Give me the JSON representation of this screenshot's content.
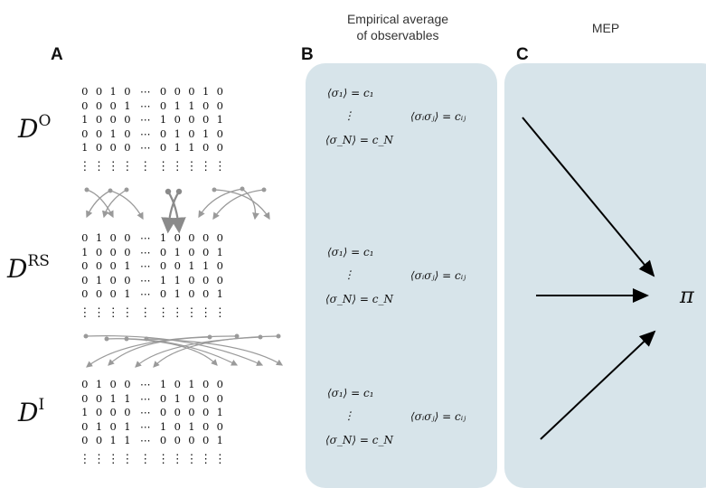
{
  "panels": {
    "A": "A",
    "B": "B",
    "C": "C"
  },
  "headers": {
    "B_line1": "Empirical average",
    "B_line2": "of observables",
    "C": "MEP"
  },
  "datasets": [
    {
      "label": "D",
      "superscript": "O",
      "rows": [
        [
          "0",
          "0",
          "1",
          "0",
          "0",
          "0",
          "0",
          "1",
          "0"
        ],
        [
          "0",
          "0",
          "0",
          "1",
          "0",
          "1",
          "1",
          "0",
          "0"
        ],
        [
          "1",
          "0",
          "0",
          "0",
          "1",
          "0",
          "0",
          "0",
          "1"
        ],
        [
          "0",
          "0",
          "1",
          "0",
          "0",
          "1",
          "0",
          "1",
          "0"
        ],
        [
          "1",
          "0",
          "0",
          "0",
          "0",
          "1",
          "1",
          "0",
          "0"
        ]
      ]
    },
    {
      "label": "D",
      "superscript": "RS",
      "rows": [
        [
          "0",
          "1",
          "0",
          "0",
          "1",
          "0",
          "0",
          "0",
          "0"
        ],
        [
          "1",
          "0",
          "0",
          "0",
          "0",
          "1",
          "0",
          "0",
          "1"
        ],
        [
          "0",
          "0",
          "0",
          "1",
          "0",
          "0",
          "1",
          "1",
          "0"
        ],
        [
          "0",
          "1",
          "0",
          "0",
          "1",
          "1",
          "0",
          "0",
          "0"
        ],
        [
          "0",
          "0",
          "0",
          "1",
          "0",
          "1",
          "0",
          "0",
          "1"
        ]
      ]
    },
    {
      "label": "D",
      "superscript": "I",
      "rows": [
        [
          "0",
          "1",
          "0",
          "0",
          "1",
          "0",
          "1",
          "0",
          "0"
        ],
        [
          "0",
          "0",
          "1",
          "1",
          "0",
          "1",
          "0",
          "0",
          "0"
        ],
        [
          "1",
          "0",
          "0",
          "0",
          "0",
          "0",
          "0",
          "0",
          "1"
        ],
        [
          "0",
          "1",
          "0",
          "1",
          "1",
          "0",
          "1",
          "0",
          "0"
        ],
        [
          "0",
          "0",
          "1",
          "1",
          "0",
          "0",
          "0",
          "0",
          "1"
        ]
      ]
    }
  ],
  "symbols": {
    "hdots": "⋯",
    "vdots": "⋮",
    "pi": "π"
  },
  "equations": {
    "first": "⟨σ₁⟩ = c₁",
    "last": "⟨σ_N⟩ = c_N",
    "pair": "⟨σᵢσⱼ⟩ = cᵢⱼ"
  },
  "colors": {
    "panel_bg": "#d7e4ea",
    "arrow_gray": "#9a9a9a",
    "arrow_black": "#000000"
  }
}
